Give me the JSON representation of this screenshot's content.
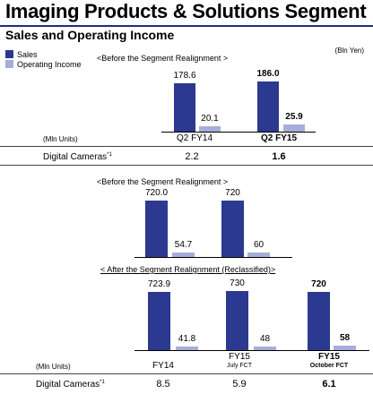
{
  "header": {
    "title": "Imaging Products & Solutions Segment",
    "subtitle": "Sales and Operating Income",
    "unit": "(Bln Yen)"
  },
  "legend": [
    {
      "label": "Sales",
      "color": "#2b3990"
    },
    {
      "label": "Operating Income",
      "color": "#a5aed9"
    }
  ],
  "sections": {
    "before1": "<Before the Segment Realignment >",
    "before2": "<Before the Segment Realignment >",
    "after": "< After the Segment Realignment (Reclassified)>"
  },
  "chart_data": [
    {
      "type": "bar",
      "categories": [
        "Q2 FY14",
        "Q2 FY15"
      ],
      "series": [
        {
          "name": "Sales",
          "values": [
            178.6,
            186.0
          ],
          "labels": [
            "178.6",
            "186.0"
          ]
        },
        {
          "name": "Operating Income",
          "values": [
            20.1,
            25.9
          ],
          "labels": [
            "20.1",
            "25.9"
          ]
        }
      ]
    },
    {
      "type": "bar",
      "categories": [
        "",
        ""
      ],
      "series": [
        {
          "name": "Sales",
          "values": [
            720.0,
            720
          ],
          "labels": [
            "720.0",
            "720"
          ]
        },
        {
          "name": "Operating Income",
          "values": [
            54.7,
            60
          ],
          "labels": [
            "54.7",
            "60"
          ]
        }
      ]
    },
    {
      "type": "bar",
      "categories": [
        "FY14",
        "FY15",
        "FY15"
      ],
      "category_sublabels": [
        "",
        "July FCT",
        "October FCT"
      ],
      "series": [
        {
          "name": "Sales",
          "values": [
            723.9,
            730,
            720
          ],
          "labels": [
            "723.9",
            "730",
            "720"
          ]
        },
        {
          "name": "Operating Income",
          "values": [
            41.8,
            48,
            58
          ],
          "labels": [
            "41.8",
            "48",
            "58"
          ]
        }
      ]
    }
  ],
  "table1": {
    "units": "(Mln Units)",
    "row_label": "Digital Cameras",
    "footnote": "*1",
    "values": [
      "2.2",
      "1.6"
    ]
  },
  "table2": {
    "units": "(Mln Units)",
    "row_label": "Digital Cameras",
    "footnote": "*1",
    "values": [
      "8.5",
      "5.9",
      "6.1"
    ]
  }
}
